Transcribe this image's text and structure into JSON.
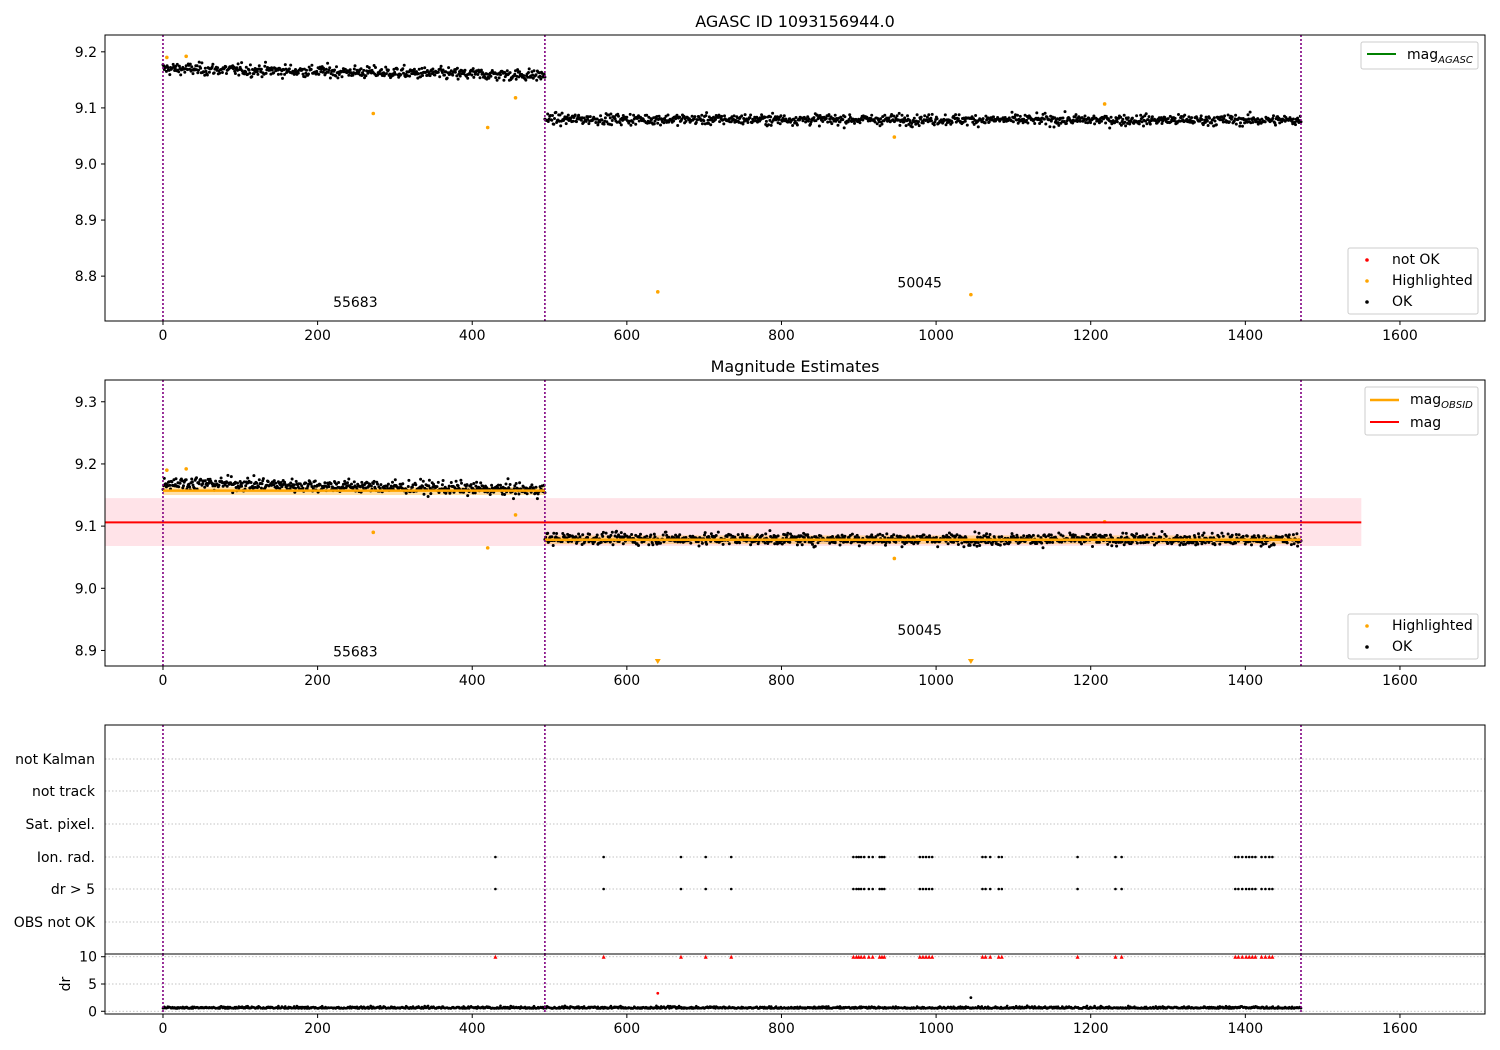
{
  "chart_data": [
    {
      "type": "scatter",
      "title": "AGASC ID 1093156944.0",
      "xlabel": "",
      "ylabel": "",
      "xlim": [
        -75,
        1710
      ],
      "ylim": [
        8.72,
        9.23
      ],
      "xticks": [
        0,
        200,
        400,
        600,
        800,
        1000,
        1200,
        1400,
        1600
      ],
      "yticks": [
        8.8,
        8.9,
        9.0,
        9.1,
        9.2
      ],
      "grid": false,
      "vlines": [
        0,
        494,
        1472
      ],
      "vline_color": "#800080",
      "annotations": [
        {
          "text": "55683",
          "x": 220,
          "y": 8.745
        },
        {
          "text": "50045",
          "x": 950,
          "y": 8.78
        }
      ],
      "series": [
        {
          "name": "OK",
          "color": "#000000",
          "segments": [
            {
              "x": [
                0,
                494
              ],
              "level": [
                9.17,
                9.158
              ],
              "noise": 0.009,
              "n": 560
            },
            {
              "x": [
                494,
                1472
              ],
              "level": [
                9.08,
                9.078
              ],
              "noise": 0.008,
              "n": 1100
            }
          ]
        },
        {
          "name": "Highlighted",
          "color": "#ffa500",
          "x": [
            5,
            30,
            272,
            420,
            456,
            640,
            946,
            1045,
            1218
          ],
          "y": [
            9.19,
            9.192,
            9.09,
            9.065,
            9.118,
            8.772,
            9.048,
            8.767,
            9.107
          ]
        },
        {
          "name": "not OK",
          "color": "#ff0000",
          "x": [],
          "y": []
        }
      ],
      "lines": [
        {
          "name": "mag_AGASC",
          "label_main": "mag",
          "label_sub": "AGASC",
          "color": "#008000"
        }
      ],
      "legend_upper": "top-right",
      "legend_lower": "bottom-right"
    },
    {
      "type": "scatter",
      "title": "Magnitude Estimates",
      "xlabel": "",
      "ylabel": "",
      "xlim": [
        -75,
        1710
      ],
      "ylim": [
        8.875,
        9.335
      ],
      "xticks": [
        0,
        200,
        400,
        600,
        800,
        1000,
        1200,
        1400,
        1600
      ],
      "yticks": [
        8.9,
        9.0,
        9.1,
        9.2,
        9.3
      ],
      "grid": false,
      "vlines": [
        0,
        494,
        1472
      ],
      "vline_color": "#800080",
      "annotations": [
        {
          "text": "55683",
          "x": 220,
          "y": 8.89
        },
        {
          "text": "50045",
          "x": 950,
          "y": 8.925
        }
      ],
      "mag_line": {
        "name": "mag",
        "y": 9.106,
        "band": [
          9.068,
          9.145
        ],
        "x": [
          -75,
          1550
        ],
        "color": "#ff0000",
        "band_color": "#ffc0cb"
      },
      "obsid_lines": [
        {
          "x": [
            0,
            494
          ],
          "y": 9.157,
          "band": [
            9.15,
            9.163
          ]
        },
        {
          "x": [
            494,
            1472
          ],
          "y": 9.078,
          "band": [
            9.071,
            9.085
          ]
        }
      ],
      "series": [
        {
          "name": "OK",
          "color": "#000000",
          "segments": [
            {
              "x": [
                0,
                494
              ],
              "level": [
                9.17,
                9.158
              ],
              "noise": 0.009,
              "n": 560
            },
            {
              "x": [
                494,
                1472
              ],
              "level": [
                9.08,
                9.078
              ],
              "noise": 0.008,
              "n": 1100
            }
          ]
        },
        {
          "name": "Highlighted",
          "color": "#ffa500",
          "x": [
            5,
            30,
            272,
            420,
            456,
            946,
            1218
          ],
          "y": [
            9.19,
            9.192,
            9.09,
            9.065,
            9.118,
            9.048,
            9.107
          ],
          "offscale_x": [
            640,
            1045
          ]
        }
      ],
      "lines": [
        {
          "name": "mag_OBSID",
          "label_main": "mag",
          "label_sub": "OBSID",
          "color": "#ffa500"
        },
        {
          "name": "mag",
          "label_main": "mag",
          "label_sub": "",
          "color": "#ff0000"
        }
      ],
      "legend_upper": "top-right",
      "legend_lower": "bottom-right"
    },
    {
      "type": "scatter",
      "title": "",
      "xlim": [
        -75,
        1710
      ],
      "categories": [
        "not Kalman",
        "not track",
        "Sat. pixel.",
        "Ion. rad.",
        "dr > 5",
        "OBS not OK"
      ],
      "flag_x": [
        430,
        570,
        670,
        702,
        735,
        893,
        897,
        900,
        903,
        907,
        913,
        918,
        927,
        930,
        933,
        979,
        983,
        987,
        991,
        995,
        1060,
        1064,
        1070,
        1081,
        1085,
        1183,
        1232,
        1240,
        1387,
        1391,
        1396,
        1401,
        1405,
        1409,
        1413,
        1421,
        1426,
        1431,
        1435
      ],
      "flag_rows": [
        "Ion. rad.",
        "dr > 5"
      ]
    },
    {
      "type": "scatter",
      "title": "",
      "xlabel": "",
      "ylabel": "dr",
      "xlim": [
        -75,
        1710
      ],
      "ylim": [
        -0.5,
        10.5
      ],
      "xticks": [
        0,
        200,
        400,
        600,
        800,
        1000,
        1200,
        1400,
        1600
      ],
      "yticks": [
        0,
        5,
        10
      ],
      "vlines": [
        0,
        494,
        1472
      ],
      "dr_baseline": 0.5,
      "dr_noise": 0.4,
      "capped_value": 10,
      "capped_color": "#ff0000",
      "outliers": [
        {
          "x": 640,
          "y": 3.3,
          "color": "#ff0000"
        },
        {
          "x": 1045,
          "y": 2.5,
          "color": "#000000"
        }
      ]
    }
  ]
}
